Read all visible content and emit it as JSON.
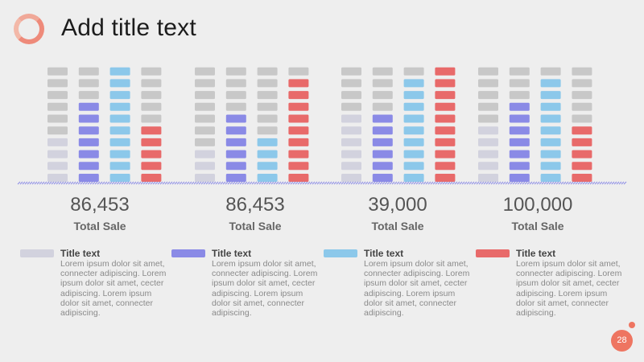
{
  "title": "Add title text",
  "page_number": "28",
  "colors": {
    "empty": "#c8c8c8",
    "series": [
      "#d2d2de",
      "#8a8ae6",
      "#8cc8ea",
      "#e86a6a"
    ],
    "ring": "#ee8a7a",
    "badge": "#ee7561"
  },
  "stats": [
    {
      "value": "86,453",
      "label": "Total Sale"
    },
    {
      "value": "86,453",
      "label": "Total Sale"
    },
    {
      "value": "39,000",
      "label": "Total Sale"
    },
    {
      "value": "100,000",
      "label": "Total Sale"
    }
  ],
  "legend": [
    {
      "title": "Title text",
      "body": "Lorem ipsum dolor sit amet, connecter adipiscing. Lorem ipsum dolor sit amet, cecter adipiscing. Lorem ipsum dolor sit amet, connecter adipiscing."
    },
    {
      "title": "Title text",
      "body": "Lorem ipsum dolor sit amet, connecter adipiscing. Lorem ipsum dolor sit amet, cecter adipiscing. Lorem ipsum dolor sit amet, connecter adipiscing."
    },
    {
      "title": "Title text",
      "body": "Lorem ipsum dolor sit amet, connecter adipiscing. Lorem ipsum dolor sit amet, cecter adipiscing. Lorem ipsum dolor sit amet, connecter adipiscing."
    },
    {
      "title": "Title text",
      "body": "Lorem ipsum dolor sit amet, connecter adipiscing. Lorem ipsum dolor sit amet, cecter adipiscing. Lorem ipsum dolor sit amet, connecter adipiscing."
    }
  ],
  "chart_data": {
    "type": "bar",
    "units_per_column": 10,
    "groups": [
      {
        "filled": [
          4,
          7,
          10,
          5
        ]
      },
      {
        "filled": [
          3,
          6,
          4,
          9
        ]
      },
      {
        "filled": [
          6,
          6,
          9,
          10
        ]
      },
      {
        "filled": [
          5,
          7,
          9,
          5
        ]
      }
    ]
  }
}
